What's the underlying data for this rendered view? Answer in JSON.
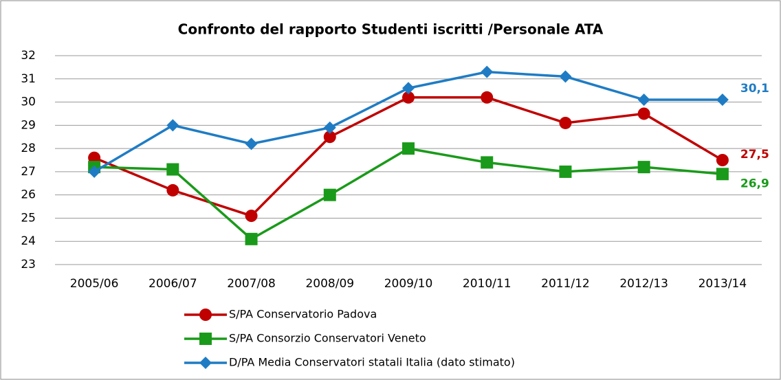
{
  "chart_data": {
    "type": "line",
    "title": "Confronto del rapporto Studenti iscritti /Personale ATA",
    "categories": [
      "2005/06",
      "2006/07",
      "2007/08",
      "2008/09",
      "2009/10",
      "2010/11",
      "2011/12",
      "2012/13",
      "2013/14"
    ],
    "series": [
      {
        "name": "S/PA Conservatorio Padova",
        "color": "#c00000",
        "marker": "circle",
        "values": [
          27.6,
          26.2,
          25.1,
          28.5,
          30.2,
          30.2,
          29.1,
          29.5,
          27.5
        ],
        "value_labels": [
          null,
          null,
          null,
          null,
          null,
          null,
          null,
          null,
          "27,5"
        ]
      },
      {
        "name": "S/PA Consorzio Conservatori Veneto",
        "color": "#1a9a1a",
        "marker": "square",
        "values": [
          27.2,
          27.1,
          24.1,
          26.0,
          28.0,
          27.4,
          27.0,
          27.2,
          26.9
        ],
        "value_labels": [
          null,
          null,
          null,
          null,
          null,
          null,
          null,
          null,
          "26,9"
        ]
      },
      {
        "name": "D/PA Media Conservatori statali Italia (dato stimato)",
        "color": "#1f7cc4",
        "marker": "diamond",
        "values": [
          27.0,
          29.0,
          28.2,
          28.9,
          30.6,
          31.3,
          31.1,
          30.1,
          30.1
        ],
        "value_labels": [
          null,
          null,
          null,
          null,
          null,
          null,
          null,
          null,
          "30,1"
        ]
      }
    ],
    "ylim": [
      23,
      32
    ],
    "yticks": [
      23,
      24,
      25,
      26,
      27,
      28,
      29,
      30,
      31,
      32
    ],
    "grid": true
  }
}
